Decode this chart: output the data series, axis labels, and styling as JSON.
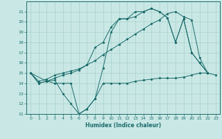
{
  "bg_color": "#c9e8e5",
  "grid_color": "#a8d0cc",
  "line_color": "#1a6b6b",
  "marker_size": 2,
  "ylim": [
    11,
    22
  ],
  "xlim": [
    -0.5,
    23.5
  ],
  "yticks": [
    11,
    12,
    13,
    14,
    15,
    16,
    17,
    18,
    19,
    20,
    21
  ],
  "xticks": [
    0,
    1,
    2,
    3,
    4,
    5,
    6,
    7,
    8,
    9,
    10,
    11,
    12,
    13,
    14,
    15,
    16,
    17,
    18,
    19,
    20,
    21,
    22,
    23
  ],
  "xlabel": "Humidex (Indice chaleur)",
  "series": [
    {
      "x": [
        0,
        1,
        2,
        3,
        4,
        5,
        6,
        7,
        8,
        9,
        10,
        11,
        12,
        13,
        14,
        15,
        16,
        17,
        18,
        19,
        20,
        21,
        22,
        23
      ],
      "y": [
        15,
        14,
        14.2,
        14,
        14,
        14,
        11,
        11.5,
        12.5,
        14,
        14,
        14,
        14,
        14.2,
        14.3,
        14.4,
        14.5,
        14.5,
        14.5,
        14.6,
        14.8,
        15,
        15,
        14.8
      ]
    },
    {
      "x": [
        0,
        1,
        2,
        3,
        4,
        5,
        6,
        7,
        8,
        9,
        10,
        11,
        12,
        13,
        14,
        15,
        16,
        17,
        18,
        19,
        20,
        21,
        22
      ],
      "y": [
        15,
        14,
        14.2,
        14.3,
        13,
        12,
        11,
        11.5,
        12.5,
        15.5,
        19,
        20.3,
        20.3,
        21,
        21,
        21.3,
        21,
        20.4,
        18,
        20.3,
        17,
        16,
        15
      ]
    },
    {
      "x": [
        0,
        1,
        2,
        3,
        4,
        5,
        6,
        7,
        8,
        9,
        10,
        11,
        12,
        13,
        14,
        15,
        16,
        17,
        18,
        19,
        20,
        21,
        22
      ],
      "y": [
        15,
        14.2,
        14.4,
        14.8,
        15,
        15.2,
        15.4,
        15.8,
        16.2,
        16.8,
        17.3,
        17.8,
        18.3,
        18.8,
        19.3,
        19.8,
        20.2,
        20.8,
        21,
        20.5,
        20.2,
        16.5,
        15
      ]
    },
    {
      "x": [
        0,
        2,
        3,
        4,
        5,
        6,
        7,
        8,
        9,
        10,
        11,
        12,
        13,
        14,
        15,
        16,
        17,
        18,
        19,
        20,
        21,
        22
      ],
      "y": [
        15,
        14.2,
        14.5,
        14.8,
        15,
        15.3,
        15.8,
        17.5,
        18,
        19.5,
        20.3,
        20.3,
        20.5,
        21,
        21.3,
        21,
        20.4,
        18,
        20.3,
        17,
        16,
        15
      ]
    }
  ]
}
